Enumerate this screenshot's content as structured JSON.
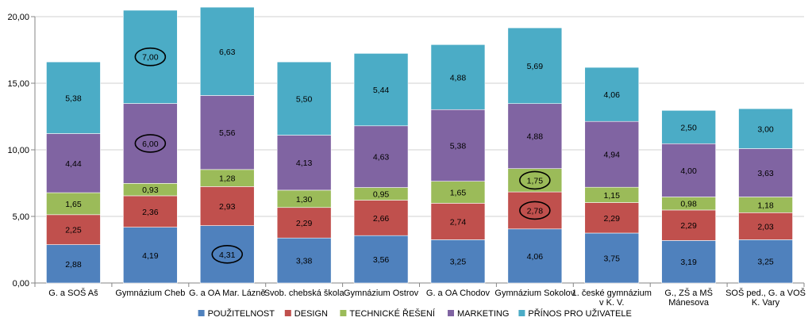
{
  "chart_data": {
    "type": "bar",
    "stacked": true,
    "categories": [
      [
        "G. a SOŠ Aš"
      ],
      [
        "Gymnázium Cheb"
      ],
      [
        "G. a OA Mar. Lázně"
      ],
      [
        "Svob. chebská škola"
      ],
      [
        "Gymnázium Ostrov"
      ],
      [
        "G. a OA Chodov"
      ],
      [
        "Gymnázium Sokolov"
      ],
      [
        "1. české gymnázium",
        "v K. V."
      ],
      [
        "G., ZŠ a MŠ",
        "Mánesova"
      ],
      [
        "SOŠ ped., G. a VOŠ",
        "K. Vary"
      ]
    ],
    "series": [
      {
        "name": "POUŽITELNOST",
        "color": "#4f81bd",
        "values": [
          2.88,
          4.19,
          4.31,
          3.38,
          3.56,
          3.25,
          4.06,
          3.75,
          3.19,
          3.25
        ],
        "labels": [
          "2,88",
          "4,19",
          "4,31",
          "3,38",
          "3,56",
          "3,25",
          "4,06",
          "3,75",
          "3,19",
          "3,25"
        ]
      },
      {
        "name": "DESIGN",
        "color": "#c0504d",
        "values": [
          2.25,
          2.36,
          2.93,
          2.29,
          2.66,
          2.74,
          2.78,
          2.29,
          2.29,
          2.03
        ],
        "labels": [
          "2,25",
          "2,36",
          "2,93",
          "2,29",
          "2,66",
          "2,74",
          "2,78",
          "2,29",
          "2,29",
          "2,03"
        ]
      },
      {
        "name": "TECHNICKÉ ŘEŠENÍ",
        "color": "#9bbb59",
        "values": [
          1.65,
          0.93,
          1.28,
          1.3,
          0.95,
          1.65,
          1.75,
          1.15,
          0.98,
          1.18
        ],
        "labels": [
          "1,65",
          "0,93",
          "1,28",
          "1,30",
          "0,95",
          "1,65",
          "1,75",
          "1,15",
          "0,98",
          "1,18"
        ]
      },
      {
        "name": "MARKETING",
        "color": "#8064a2",
        "values": [
          4.44,
          6.0,
          5.56,
          4.13,
          4.63,
          5.38,
          4.88,
          4.94,
          4.0,
          3.63
        ],
        "labels": [
          "4,44",
          "6,00",
          "5,56",
          "4,13",
          "4,63",
          "5,38",
          "4,88",
          "4,94",
          "4,00",
          "3,63"
        ]
      },
      {
        "name": "PŘÍNOS PRO UŽIVATELE",
        "color": "#4bacc6",
        "values": [
          5.38,
          7.0,
          6.63,
          5.5,
          5.44,
          4.88,
          5.69,
          4.06,
          2.5,
          3.0
        ],
        "labels": [
          "5,38",
          "7,00",
          "6,63",
          "5,50",
          "5,44",
          "4,88",
          "5,69",
          "4,06",
          "2,50",
          "3,00"
        ]
      }
    ],
    "ylim": [
      0,
      20
    ],
    "yticks": [
      "0,00",
      "5,00",
      "10,00",
      "15,00",
      "20,00"
    ],
    "grid": true,
    "legend_position": "bottom",
    "circled_labels": [
      [
        1,
        4
      ],
      [
        1,
        3
      ],
      [
        2,
        0
      ],
      [
        6,
        2
      ],
      [
        6,
        1
      ]
    ]
  }
}
